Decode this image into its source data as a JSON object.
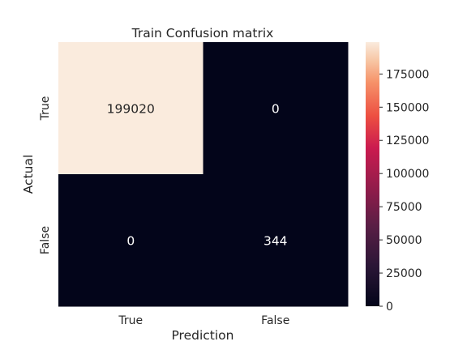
{
  "chart_data": {
    "type": "heatmap",
    "title": "Train Confusion matrix",
    "xlabel": "Prediction",
    "ylabel": "Actual",
    "x_categories": [
      "True",
      "False"
    ],
    "y_categories": [
      "True",
      "False"
    ],
    "values": [
      [
        199020,
        0
      ],
      [
        0,
        344
      ]
    ],
    "annotations": [
      "199020",
      "0",
      "0",
      "344"
    ],
    "colorbar": {
      "min": 0,
      "max": 199020,
      "ticks": [
        0,
        25000,
        50000,
        75000,
        100000,
        125000,
        150000,
        175000
      ],
      "tick_labels": [
        "0",
        "25000",
        "50000",
        "75000",
        "100000",
        "125000",
        "150000",
        "175000"
      ]
    },
    "colors": {
      "high": "#faebdd",
      "low": "#03051a",
      "annot_dark": "#262626",
      "annot_light": "#ffffff"
    }
  }
}
